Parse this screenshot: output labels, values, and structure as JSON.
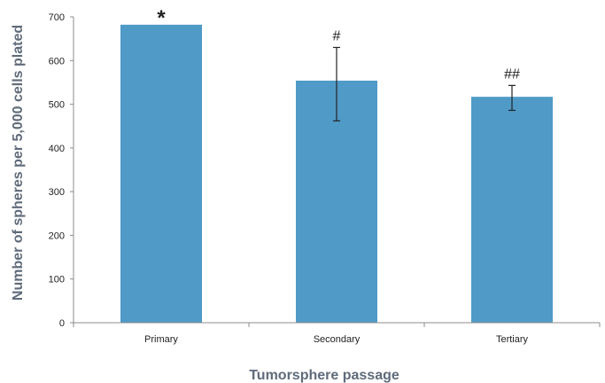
{
  "chart_data": {
    "type": "bar",
    "title": "",
    "xlabel": "Tumorsphere passage",
    "ylabel": "Number of spheres per 5,000 cells plated",
    "categories": [
      "Primary",
      "Secondary",
      "Tertiary"
    ],
    "values": [
      682,
      554,
      517
    ],
    "error_upper": [
      null,
      630,
      543
    ],
    "error_lower": [
      null,
      462,
      486
    ],
    "annotations": [
      "*",
      "#",
      "##"
    ],
    "ylim": [
      0,
      700
    ],
    "yticks": [
      0,
      100,
      200,
      300,
      400,
      500,
      600,
      700
    ],
    "grid": false,
    "legend": "none",
    "colors": {
      "bar": "#4f9ac7",
      "axis": "#8c8c8c",
      "error_bar": "#222222",
      "axis_title": "#5f6b7a"
    }
  }
}
